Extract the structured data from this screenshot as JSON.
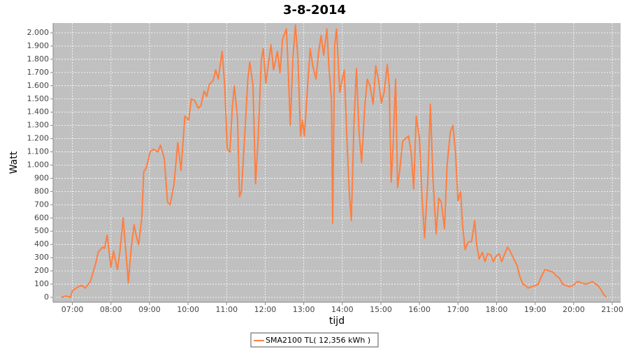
{
  "chart_data": {
    "type": "line",
    "title": "3-8-2014",
    "x_label": "tijd",
    "y_label": "Watt",
    "x": [
      "06:43",
      "06:50",
      "06:57",
      "07:00",
      "07:09",
      "07:15",
      "07:20",
      "07:28",
      "07:36",
      "07:40",
      "07:47",
      "07:50",
      "07:54",
      "08:00",
      "08:04",
      "08:10",
      "08:14",
      "08:19",
      "08:24",
      "08:27",
      "08:31",
      "08:36",
      "08:40",
      "08:43",
      "08:48",
      "08:51",
      "08:55",
      "09:01",
      "09:06",
      "09:13",
      "09:17",
      "09:23",
      "09:28",
      "09:32",
      "09:38",
      "09:44",
      "09:49",
      "09:55",
      "10:01",
      "10:05",
      "10:10",
      "10:16",
      "10:20",
      "10:25",
      "10:29",
      "10:33",
      "10:39",
      "10:43",
      "10:47",
      "10:53",
      "10:57",
      "11:01",
      "11:05",
      "11:09",
      "11:12",
      "11:17",
      "11:20",
      "11:23",
      "11:29",
      "11:33",
      "11:36",
      "11:41",
      "11:45",
      "11:49",
      "11:54",
      "11:57",
      "12:01",
      "12:06",
      "12:09",
      "12:13",
      "12:19",
      "12:23",
      "12:27",
      "12:33",
      "12:36",
      "12:39",
      "12:43",
      "12:47",
      "12:51",
      "12:55",
      "12:58",
      "13:01",
      "13:06",
      "13:10",
      "13:14",
      "13:19",
      "13:23",
      "13:27",
      "13:31",
      "13:36",
      "13:39",
      "13:43",
      "13:45",
      "13:48",
      "13:51",
      "13:56",
      "14:00",
      "14:03",
      "14:08",
      "14:11",
      "14:14",
      "14:18",
      "14:22",
      "14:26",
      "14:30",
      "14:35",
      "14:39",
      "14:43",
      "14:48",
      "14:52",
      "14:56",
      "15:01",
      "15:05",
      "15:10",
      "15:13",
      "15:16",
      "15:19",
      "15:23",
      "15:26",
      "15:29",
      "15:34",
      "15:38",
      "15:43",
      "15:47",
      "15:51",
      "15:55",
      "16:00",
      "16:04",
      "16:08",
      "16:13",
      "16:17",
      "16:21",
      "16:26",
      "16:30",
      "16:34",
      "16:39",
      "16:43",
      "16:48",
      "16:52",
      "16:56",
      "17:00",
      "17:04",
      "17:07",
      "17:11",
      "17:16",
      "17:21",
      "17:26",
      "17:29",
      "17:33",
      "17:38",
      "17:42",
      "17:46",
      "17:51",
      "17:55",
      "17:59",
      "18:04",
      "18:08",
      "18:12",
      "18:17",
      "18:21",
      "18:26",
      "18:32",
      "18:36",
      "18:41",
      "18:45",
      "18:49",
      "18:54",
      "18:58",
      "19:05",
      "19:09",
      "19:15",
      "19:22",
      "19:28",
      "19:33",
      "19:37",
      "19:43",
      "19:48",
      "19:53",
      "19:59",
      "20:06",
      "20:12",
      "20:19",
      "20:25",
      "20:29",
      "20:34",
      "20:38",
      "20:42",
      "20:47",
      "20:51"
    ],
    "series": [
      {
        "name": "SMA2100 TL( 12,356 kWh )",
        "color": "#ff7f40",
        "values": [
          0,
          10,
          0,
          50,
          80,
          90,
          70,
          120,
          250,
          340,
          380,
          370,
          470,
          230,
          350,
          210,
          350,
          600,
          300,
          110,
          350,
          550,
          450,
          400,
          600,
          950,
          980,
          1100,
          1120,
          1100,
          1150,
          1050,
          720,
          700,
          850,
          1170,
          960,
          1370,
          1340,
          1500,
          1490,
          1430,
          1450,
          1560,
          1520,
          1610,
          1640,
          1720,
          1650,
          1860,
          1600,
          1120,
          1100,
          1450,
          1600,
          1350,
          760,
          800,
          1300,
          1650,
          1780,
          1600,
          860,
          1200,
          1800,
          1880,
          1620,
          1800,
          1910,
          1720,
          1860,
          1700,
          1950,
          2030,
          1700,
          1300,
          1800,
          2060,
          1800,
          1220,
          1340,
          1220,
          1600,
          1880,
          1750,
          1650,
          1850,
          1980,
          1830,
          2030,
          1750,
          1500,
          560,
          1900,
          2030,
          1550,
          1650,
          1720,
          1100,
          780,
          580,
          1300,
          1730,
          1250,
          1020,
          1450,
          1650,
          1600,
          1460,
          1750,
          1650,
          1470,
          1550,
          1760,
          1600,
          870,
          1150,
          1650,
          830,
          950,
          1180,
          1200,
          1220,
          1100,
          820,
          1370,
          1200,
          760,
          450,
          880,
          1460,
          900,
          480,
          750,
          720,
          520,
          1000,
          1250,
          1300,
          1100,
          730,
          800,
          550,
          360,
          420,
          420,
          580,
          400,
          290,
          340,
          270,
          330,
          320,
          270,
          310,
          330,
          270,
          320,
          380,
          350,
          300,
          240,
          160,
          100,
          90,
          70,
          80,
          85,
          100,
          150,
          210,
          200,
          190,
          160,
          150,
          100,
          90,
          80,
          90,
          120,
          110,
          100,
          110,
          120,
          100,
          90,
          60,
          20,
          0
        ]
      }
    ],
    "xlim": [
      "06:30",
      "21:13"
    ],
    "xticks": [
      "07:00",
      "08:00",
      "09:00",
      "10:00",
      "11:00",
      "12:00",
      "13:00",
      "14:00",
      "15:00",
      "16:00",
      "17:00",
      "18:00",
      "19:00",
      "20:00",
      "21:00"
    ],
    "ylim": [
      -37,
      2074
    ],
    "yticks": [
      0,
      100,
      200,
      300,
      400,
      500,
      600,
      700,
      800,
      900,
      {
        "value": 1000,
        "label": "1.000"
      },
      {
        "value": 1100,
        "label": "1.100"
      },
      {
        "value": 1200,
        "label": "1.200"
      },
      {
        "value": 1300,
        "label": "1.300"
      },
      {
        "value": 1400,
        "label": "1.400"
      },
      {
        "value": 1500,
        "label": "1.500"
      },
      {
        "value": 1600,
        "label": "1.600"
      },
      {
        "value": 1700,
        "label": "1.700"
      },
      {
        "value": 1800,
        "label": "1.800"
      },
      {
        "value": 1900,
        "label": "1.900"
      },
      {
        "value": 2000,
        "label": "2.000"
      }
    ],
    "grid": true,
    "legend": "bottom"
  }
}
